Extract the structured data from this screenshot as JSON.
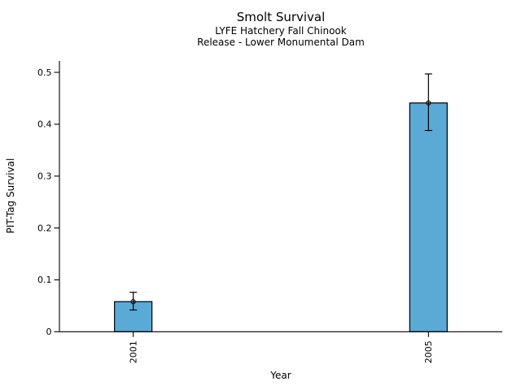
{
  "chart_data": {
    "type": "bar",
    "title": "Smolt Survival",
    "subtitle1": "LYFE Hatchery Fall Chinook",
    "subtitle2": "Release - Lower Monumental Dam",
    "xlabel": "Year",
    "ylabel": "PIT-Tag Survival",
    "categories": [
      "2001",
      "2005"
    ],
    "x": [
      2001,
      2005
    ],
    "values": [
      0.058,
      0.441
    ],
    "error_low": [
      0.042,
      0.388
    ],
    "error_high": [
      0.076,
      0.497
    ],
    "yticks": [
      0,
      0.1,
      0.2,
      0.3,
      0.4,
      0.5
    ],
    "ytick_labels": [
      "0",
      "0.1",
      "0.2",
      "0.3",
      "0.4",
      "0.5"
    ],
    "xlim": [
      2000,
      2006
    ],
    "ylim": [
      0,
      0.522
    ],
    "bar_color": "#5BA9D5",
    "bar_edge_color": "#000000",
    "axis_color": "#000000",
    "text_color": "#000000",
    "marker": "open-circle",
    "grid": false,
    "legend": null
  }
}
